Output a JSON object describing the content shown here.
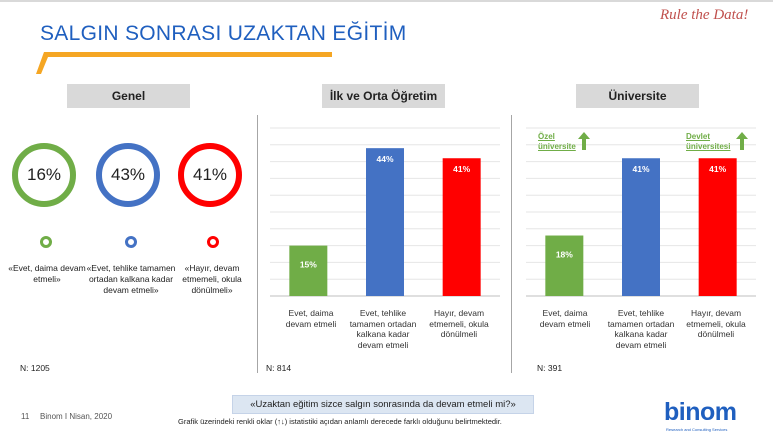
{
  "header": {
    "title": "SALGIN SONRASI UZAKTAN EĞİTİM",
    "slogan": "Rule the Data!"
  },
  "colors": {
    "green": "#70ad47",
    "blue": "#4472c4",
    "red": "#ff0000",
    "title_blue": "#1f5fbf",
    "accent_orange": "#f5a623"
  },
  "panels": {
    "genel": {
      "label": "Genel",
      "n": "N: 1205",
      "rings": [
        {
          "value": "16%",
          "label": "«Evet, daima devam etmeli»",
          "color": "#70ad47"
        },
        {
          "value": "43%",
          "label": "«Evet, tehlike tamamen ortadan kalkana kadar devam etmeli»",
          "color": "#4472c4"
        },
        {
          "value": "41%",
          "label": "«Hayır, devam etmemeli, okula dönülmeli»",
          "color": "#ff0000"
        }
      ]
    },
    "ilk": {
      "label": "İlk ve Orta Öğretim",
      "n": "N: 814"
    },
    "uni": {
      "label": "Üniversite",
      "n": "N: 391",
      "ozel": "Özel üniversite",
      "devlet": "Devlet üniversitesi"
    }
  },
  "chart_data": [
    {
      "type": "bar",
      "title": "İlk ve Orta Öğretim",
      "categories": [
        "Evet, daima devam etmeli",
        "Evet, tehlike tamamen ortadan kalkana kadar devam etmeli",
        "Hayır, devam etmemeli, okula dönülmeli"
      ],
      "values": [
        15,
        44,
        41
      ],
      "value_labels": [
        "15%",
        "44%",
        "41%"
      ],
      "colors": [
        "#70ad47",
        "#4472c4",
        "#ff0000"
      ],
      "ylim": [
        0,
        50
      ],
      "grid": true
    },
    {
      "type": "bar",
      "title": "Üniversite",
      "categories": [
        "Evet, daima devam etmeli",
        "Evet, tehlike tamamen ortadan kalkana kadar devam etmeli",
        "Hayır, devam etmemeli, okula dönülmeli"
      ],
      "values": [
        18,
        41,
        41
      ],
      "value_labels": [
        "18%",
        "41%",
        "41%"
      ],
      "colors": [
        "#70ad47",
        "#4472c4",
        "#ff0000"
      ],
      "ylim": [
        0,
        50
      ],
      "grid": true
    }
  ],
  "footer": {
    "question": "«Uzaktan eğitim sizce salgın sonrasında da devam etmeli mi?»",
    "footnote": "Grafik üzerindeki renkli oklar (↑↓) istatistiki açıdan anlamlı derecede farklı olduğunu belirtmektedir.",
    "page": "11",
    "brand": "Binom I Nisan, 2020",
    "logo": "binom",
    "logo_sub": "Research and Consulting Services"
  }
}
